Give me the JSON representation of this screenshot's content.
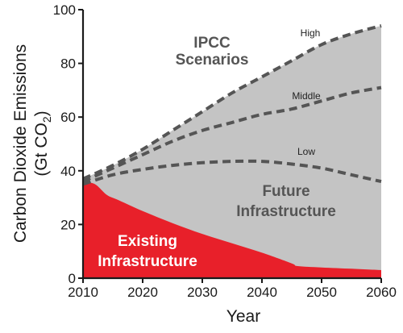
{
  "chart_data": {
    "type": "area",
    "xlabel": "Year",
    "ylabel_line1": "Carbon Dioxide Emissions",
    "ylabel_line2_prefix": "(Gt CO",
    "ylabel_line2_subscript": "2",
    "ylabel_line2_suffix": ")",
    "xlim": [
      2010,
      2060
    ],
    "ylim": [
      0,
      100
    ],
    "x_ticks": [
      2010,
      2020,
      2030,
      2040,
      2050,
      2060
    ],
    "y_ticks": [
      0,
      20,
      40,
      60,
      80,
      100
    ],
    "grid": false,
    "colors": {
      "existing": "#e8202a",
      "future": "#c4c4c4",
      "scenario_line": "#555555",
      "label_dark": "#555555",
      "label_light": "#ffffff"
    },
    "existing_infrastructure": {
      "x": [
        2010,
        2012,
        2014,
        2016,
        2020,
        2025,
        2030,
        2035,
        2040,
        2045,
        2046,
        2050,
        2055,
        2060
      ],
      "y": [
        36,
        35,
        31,
        29,
        25,
        20.5,
        16.5,
        13,
        9.5,
        5.5,
        4.5,
        4,
        3.5,
        3
      ]
    },
    "scenarios": [
      {
        "name": "High",
        "x": [
          2010,
          2015,
          2020,
          2025,
          2030,
          2035,
          2040,
          2045,
          2050,
          2055,
          2060
        ],
        "y": [
          37,
          42,
          48,
          55,
          62,
          69,
          75,
          81,
          87,
          91,
          94
        ]
      },
      {
        "name": "Middle",
        "x": [
          2010,
          2015,
          2020,
          2025,
          2030,
          2035,
          2040,
          2045,
          2050,
          2055,
          2060
        ],
        "y": [
          36,
          41,
          46,
          51,
          55,
          58,
          61,
          63,
          66,
          69,
          71
        ]
      },
      {
        "name": "Low",
        "x": [
          2010,
          2015,
          2020,
          2025,
          2030,
          2035,
          2040,
          2045,
          2050,
          2055,
          2060
        ],
        "y": [
          35,
          38.5,
          40.5,
          42,
          43,
          43.5,
          43.5,
          42.5,
          41,
          38.5,
          36
        ]
      }
    ],
    "annotations": {
      "ipcc_line1": "IPCC",
      "ipcc_line2": "Scenarios",
      "future_line1": "Future",
      "future_line2": "Infrastructure",
      "existing_line1": "Existing",
      "existing_line2": "Infrastructure"
    }
  }
}
